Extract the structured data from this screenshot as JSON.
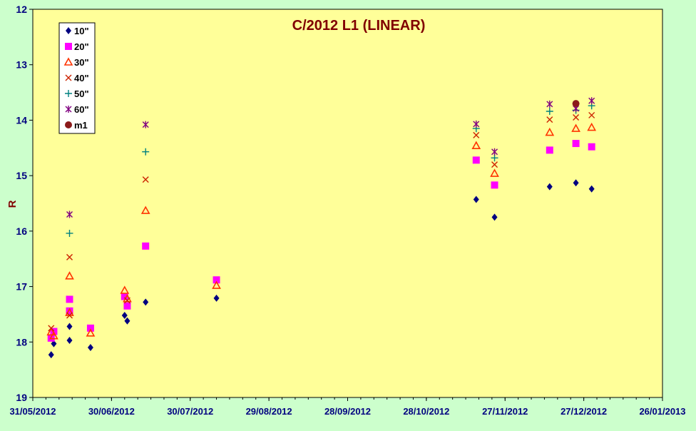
{
  "chart_data": {
    "type": "scatter",
    "title": "C/2012 L1 (LINEAR)",
    "xlabel": "",
    "ylabel": "R",
    "y_inverted": true,
    "ylim": [
      12,
      19
    ],
    "yticks": [
      12,
      13,
      14,
      15,
      16,
      17,
      18,
      19
    ],
    "xlim": [
      "2012-05-31",
      "2013-01-26"
    ],
    "xticks": [
      "2012-05-31",
      "2012-06-30",
      "2012-07-30",
      "2012-08-29",
      "2012-09-28",
      "2012-10-28",
      "2012-11-27",
      "2012-12-27",
      "2013-01-26"
    ],
    "xtick_labels": [
      "31/05/2012",
      "30/06/2012",
      "30/07/2012",
      "29/08/2012",
      "28/09/2012",
      "28/10/2012",
      "27/11/2012",
      "27/12/2012",
      "26/01/2013"
    ],
    "grid": false,
    "legend_position": "top-left",
    "plot_background": "#ffff99",
    "title_color": "#800000",
    "series": [
      {
        "name": "10\"",
        "marker": "diamond",
        "color": "#000080",
        "points": [
          [
            "2012-06-07",
            18.23
          ],
          [
            "2012-06-08",
            18.03
          ],
          [
            "2012-06-14",
            17.72
          ],
          [
            "2012-06-14",
            17.97
          ],
          [
            "2012-06-22",
            18.1
          ],
          [
            "2012-07-05",
            17.52
          ],
          [
            "2012-07-06",
            17.62
          ],
          [
            "2012-07-13",
            17.28
          ],
          [
            "2012-08-09",
            17.21
          ],
          [
            "2012-11-16",
            15.43
          ],
          [
            "2012-11-23",
            15.75
          ],
          [
            "2012-12-14",
            15.2
          ],
          [
            "2012-12-24",
            15.13
          ],
          [
            "2012-12-30",
            15.24
          ]
        ]
      },
      {
        "name": "20\"",
        "marker": "square",
        "color": "#ff00ff",
        "points": [
          [
            "2012-06-07",
            17.93
          ],
          [
            "2012-06-08",
            17.81
          ],
          [
            "2012-06-14",
            17.23
          ],
          [
            "2012-06-14",
            17.44
          ],
          [
            "2012-06-22",
            17.75
          ],
          [
            "2012-07-05",
            17.18
          ],
          [
            "2012-07-06",
            17.35
          ],
          [
            "2012-07-13",
            16.27
          ],
          [
            "2012-08-09",
            16.88
          ],
          [
            "2012-11-16",
            14.72
          ],
          [
            "2012-11-23",
            15.17
          ],
          [
            "2012-12-14",
            14.54
          ],
          [
            "2012-12-24",
            14.42
          ],
          [
            "2012-12-30",
            14.48
          ]
        ]
      },
      {
        "name": "30\"",
        "marker": "triangle",
        "color": "#ff3300",
        "points": [
          [
            "2012-06-07",
            17.82
          ],
          [
            "2012-06-08",
            17.89
          ],
          [
            "2012-06-14",
            16.81
          ],
          [
            "2012-06-14",
            17.47
          ],
          [
            "2012-06-22",
            17.84
          ],
          [
            "2012-07-05",
            17.07
          ],
          [
            "2012-07-06",
            17.22
          ],
          [
            "2012-07-13",
            15.63
          ],
          [
            "2012-08-09",
            16.98
          ],
          [
            "2012-11-16",
            14.46
          ],
          [
            "2012-11-23",
            14.96
          ],
          [
            "2012-12-14",
            14.22
          ],
          [
            "2012-12-24",
            14.15
          ],
          [
            "2012-12-30",
            14.13
          ]
        ]
      },
      {
        "name": "40\"",
        "marker": "x",
        "color": "#cc2200",
        "points": [
          [
            "2012-06-07",
            17.75
          ],
          [
            "2012-06-14",
            16.47
          ],
          [
            "2012-06-14",
            17.52
          ],
          [
            "2012-07-06",
            17.25
          ],
          [
            "2012-07-13",
            15.07
          ],
          [
            "2012-11-16",
            14.27
          ],
          [
            "2012-11-23",
            14.8
          ],
          [
            "2012-12-14",
            13.99
          ],
          [
            "2012-12-24",
            13.95
          ],
          [
            "2012-12-30",
            13.91
          ]
        ]
      },
      {
        "name": "50\"",
        "marker": "plus",
        "color": "#008080",
        "points": [
          [
            "2012-06-14",
            16.04
          ],
          [
            "2012-07-13",
            14.57
          ],
          [
            "2012-11-16",
            14.15
          ],
          [
            "2012-11-23",
            14.68
          ],
          [
            "2012-12-14",
            13.84
          ],
          [
            "2012-12-24",
            13.82
          ],
          [
            "2012-12-30",
            13.74
          ]
        ]
      },
      {
        "name": "60\"",
        "marker": "star",
        "color": "#800080",
        "points": [
          [
            "2012-06-14",
            15.7
          ],
          [
            "2012-07-13",
            14.08
          ],
          [
            "2012-11-16",
            14.07
          ],
          [
            "2012-11-23",
            14.57
          ],
          [
            "2012-12-14",
            13.71
          ],
          [
            "2012-12-24",
            13.79
          ],
          [
            "2012-12-30",
            13.65
          ]
        ]
      },
      {
        "name": "m1",
        "marker": "circle",
        "color": "#8b1a1a",
        "points": [
          [
            "2012-12-24",
            13.7
          ]
        ]
      }
    ]
  }
}
